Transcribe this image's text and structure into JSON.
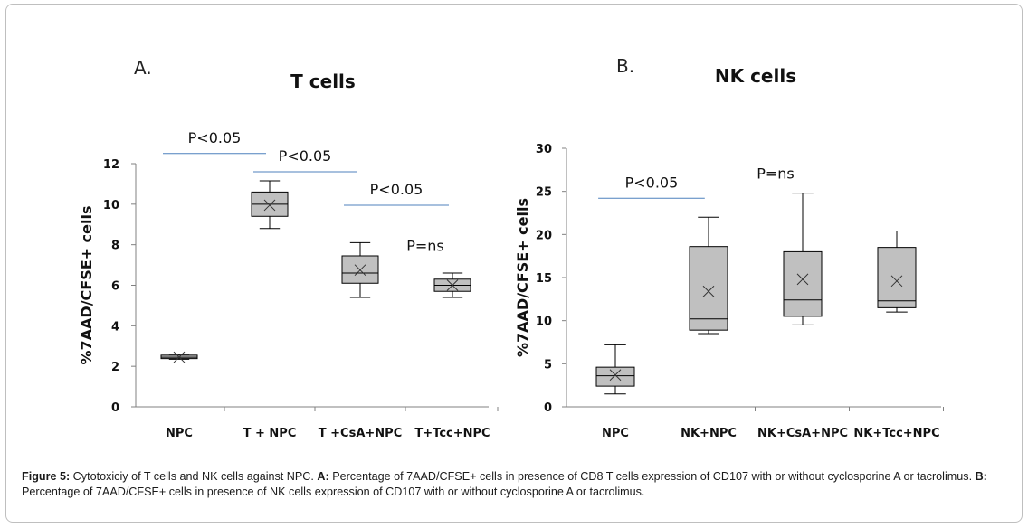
{
  "chart_data": [
    {
      "type": "box",
      "panel_label": "A.",
      "title": "T cells",
      "ylabel": "%7AAD/CFSE+ cells",
      "ylim": [
        0,
        12
      ],
      "yticks": [
        0,
        2,
        4,
        6,
        8,
        10,
        12
      ],
      "categories": [
        "NPC",
        "T + NPC",
        "T +CsA+NPC",
        "T+Tcc+NPC"
      ],
      "boxes": [
        {
          "category": "NPC",
          "min": 2.35,
          "q1": 2.38,
          "median": 2.45,
          "q3": 2.55,
          "max": 2.6,
          "mean": 2.45
        },
        {
          "category": "T + NPC",
          "min": 8.8,
          "q1": 9.4,
          "median": 10.0,
          "q3": 10.6,
          "max": 11.15,
          "mean": 9.95
        },
        {
          "category": "T +CsA+NPC",
          "min": 5.4,
          "q1": 6.1,
          "median": 6.6,
          "q3": 7.45,
          "max": 8.1,
          "mean": 6.75
        },
        {
          "category": "T+Tcc+NPC",
          "min": 5.4,
          "q1": 5.7,
          "median": 6.0,
          "q3": 6.3,
          "max": 6.6,
          "mean": 6.0
        }
      ],
      "annotations": [
        {
          "text": "P<0.05",
          "from": "NPC",
          "to": "T + NPC",
          "y": 12.5
        },
        {
          "text": "P<0.05",
          "from": "T + NPC",
          "to": "T +CsA+NPC",
          "y": 11.6
        },
        {
          "text": "P<0.05",
          "from": "T +CsA+NPC",
          "to": "T+Tcc+NPC",
          "y": 9.95
        },
        {
          "text": "P=ns",
          "category": "T+Tcc+NPC",
          "y": 7.7
        }
      ]
    },
    {
      "type": "box",
      "panel_label": "B.",
      "title": "NK cells",
      "ylabel": "%7AAD/CFSE+ cells",
      "ylim": [
        0,
        30
      ],
      "yticks": [
        0,
        5,
        10,
        15,
        20,
        25,
        30
      ],
      "categories": [
        "NPC",
        "NK+NPC",
        "NK+CsA+NPC",
        "NK+Tcc+NPC"
      ],
      "boxes": [
        {
          "category": "NPC",
          "min": 1.5,
          "q1": 2.4,
          "median": 3.6,
          "q3": 4.6,
          "max": 7.2,
          "mean": 3.7
        },
        {
          "category": "NK+NPC",
          "min": 8.5,
          "q1": 8.9,
          "median": 10.2,
          "q3": 18.6,
          "max": 22.0,
          "mean": 13.4
        },
        {
          "category": "NK+CsA+NPC",
          "min": 9.5,
          "q1": 10.5,
          "median": 12.4,
          "q3": 18.0,
          "max": 24.8,
          "mean": 14.8
        },
        {
          "category": "NK+Tcc+NPC",
          "min": 11.0,
          "q1": 11.5,
          "median": 12.3,
          "q3": 18.5,
          "max": 20.4,
          "mean": 14.6
        }
      ],
      "annotations": [
        {
          "text": "P<0.05",
          "from": "NPC",
          "to": "NK+NPC",
          "y": 24.2
        },
        {
          "text": "P=ns",
          "category": "NK+CsA+NPC",
          "y": 26.5
        }
      ]
    }
  ],
  "caption": {
    "label": "Figure 5:",
    "text1": " Cytotoxiciy of T cells and NK cells against NPC. ",
    "label_a": "A:",
    "text2": " Percentage of 7AAD/CFSE+ cells in presence of CD8 T cells expression of CD107 with or without cyclosporine A or tacrolimus. ",
    "label_b": "B:",
    "text3": " Percentage of 7AAD/CFSE+ cells in presence of NK cells expression of CD107 with or without cyclosporine A or tacrolimus."
  },
  "colors": {
    "box_fill": "#c0c0c0",
    "box_stroke": "#000000",
    "sig_line": "#4f81bd",
    "axis": "#808080"
  }
}
